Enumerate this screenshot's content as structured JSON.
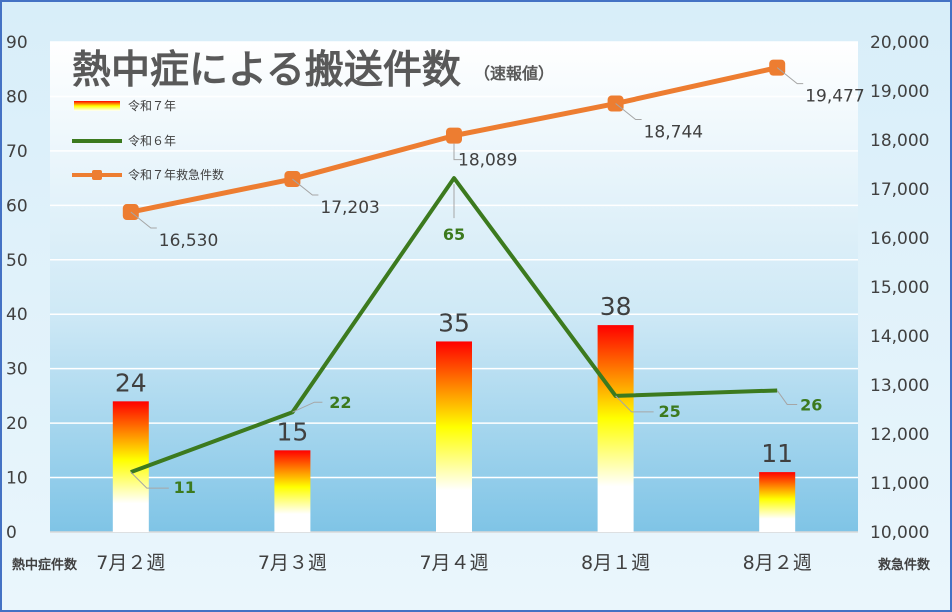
{
  "chart_data": {
    "type": "bar",
    "title": "熱中症による搬送件数",
    "subtitle": "（速報値）",
    "categories": [
      "7月２週",
      "7月３週",
      "7月４週",
      "8月１週",
      "8月２週"
    ],
    "y_left": {
      "label": "熱中症件数",
      "ylim": [
        0,
        90
      ],
      "ticks": [
        "0",
        "10",
        "20",
        "30",
        "40",
        "50",
        "60",
        "70",
        "80",
        "90"
      ]
    },
    "y_right": {
      "label": "救急件数",
      "ylim": [
        10000,
        20000
      ],
      "ticks": [
        "10,000",
        "11,000",
        "12,000",
        "13,000",
        "14,000",
        "15,000",
        "16,000",
        "17,000",
        "18,000",
        "19,000",
        "20,000"
      ]
    },
    "grid": true,
    "legend_position": "top-left",
    "series": [
      {
        "name": "令和７年",
        "type": "bar",
        "axis": "left",
        "values": [
          24,
          15,
          35,
          38,
          11
        ],
        "labels": [
          "24",
          "15",
          "35",
          "38",
          "11"
        ]
      },
      {
        "name": "令和６年",
        "type": "line",
        "axis": "left",
        "color": "#3c7a1e",
        "values": [
          11,
          22,
          65,
          25,
          26
        ],
        "labels": [
          "11",
          "22",
          "65",
          "25",
          "26"
        ]
      },
      {
        "name": "令和７年救急件数",
        "type": "line",
        "axis": "right",
        "color": "#ed7d31",
        "values": [
          16530,
          17203,
          18089,
          18744,
          19477
        ],
        "labels": [
          "16,530",
          "17,203",
          "18,089",
          "18,744",
          "19,477"
        ]
      }
    ],
    "colors": {
      "frame": "#4472c4",
      "bar_top": "#ff0000",
      "bar_mid": "#ffff00",
      "bar_bottom": "#ffffff",
      "line_r6": "#3c7a1e",
      "line_em": "#ed7d31"
    }
  }
}
